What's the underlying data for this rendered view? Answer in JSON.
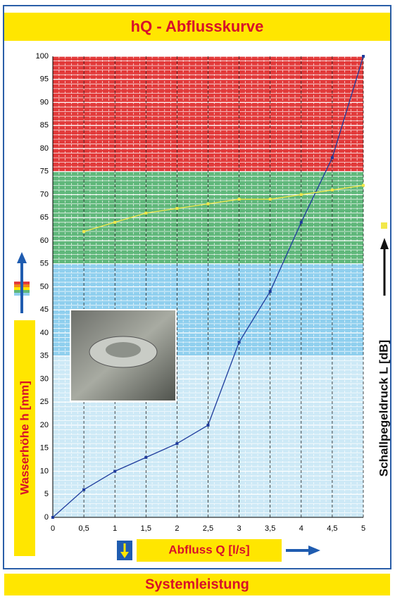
{
  "chart_data": {
    "type": "line",
    "title": "hQ - Abflusskurve",
    "footer": "Systemleistung",
    "x_label": "Abfluss Q [l/s]",
    "y_label": "Wasserhöhe h [mm]",
    "y2_label": "Schallpegeldruck L [dB]",
    "xlim": [
      0,
      5
    ],
    "ylim": [
      0,
      100
    ],
    "xticks": [
      0,
      {
        "value": 0.5,
        "label": "0,5"
      },
      1,
      {
        "value": 1.5,
        "label": "1,5"
      },
      2,
      {
        "value": 2.5,
        "label": "2,5"
      },
      3,
      {
        "value": 3.5,
        "label": "3,5"
      },
      4,
      {
        "value": 4.5,
        "label": "4,5"
      },
      5
    ],
    "yticks": [
      0,
      5,
      10,
      15,
      20,
      25,
      30,
      35,
      40,
      45,
      50,
      55,
      60,
      65,
      70,
      75,
      80,
      85,
      90,
      95,
      100
    ],
    "bands": [
      {
        "from": 0,
        "to": 35,
        "color": "#cde9f6"
      },
      {
        "from": 35,
        "to": 55,
        "color": "#8fcfee"
      },
      {
        "from": 55,
        "to": 75,
        "color": "#5fb77a"
      },
      {
        "from": 75,
        "to": 100,
        "color": "#e23a3a"
      }
    ],
    "series": [
      {
        "color": "#1f3c9c",
        "x": [
          0,
          0.5,
          1,
          1.5,
          2,
          2.5,
          3,
          3.5,
          4,
          4.5,
          5
        ],
        "values": [
          0,
          6,
          10,
          13,
          16,
          20,
          38,
          49,
          64,
          78,
          100
        ]
      },
      {
        "color": "#f2e84a",
        "x": [
          0.5,
          1,
          1.5,
          2,
          2.5,
          3,
          3.5,
          4,
          4.5,
          5
        ],
        "values": [
          62,
          64,
          66,
          67,
          68,
          69,
          69,
          70,
          71,
          72
        ]
      }
    ]
  }
}
